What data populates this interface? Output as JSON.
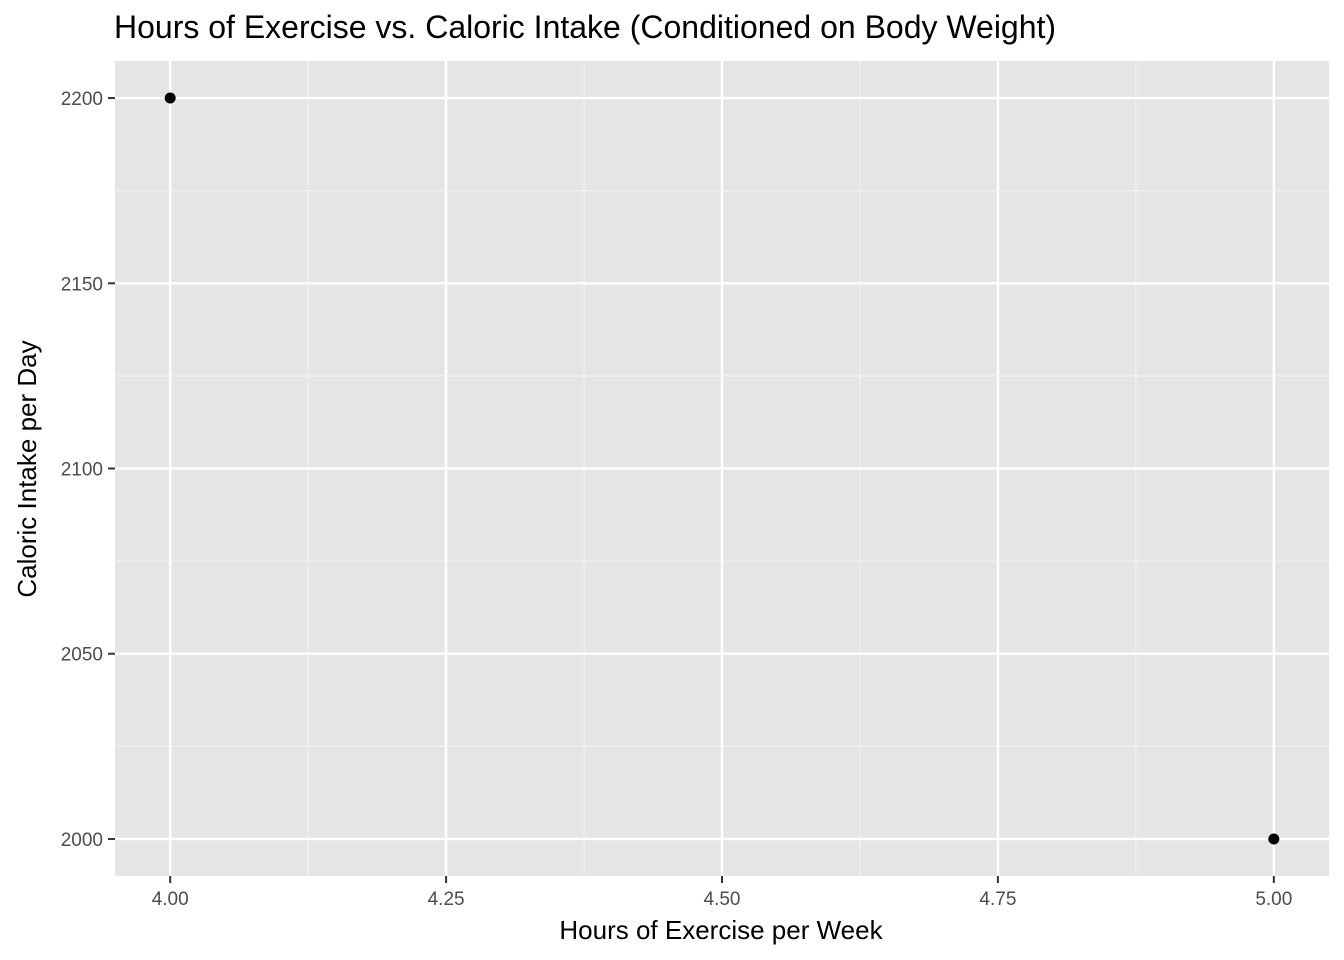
{
  "chart_data": {
    "type": "scatter",
    "title": "Hours of Exercise vs. Caloric Intake (Conditioned on Body Weight)",
    "xlabel": "Hours of Exercise per Week",
    "ylabel": "Caloric Intake per Day",
    "xlim": [
      3.95,
      5.05
    ],
    "ylim": [
      1990,
      2210
    ],
    "x_ticks": [
      4.0,
      4.25,
      4.5,
      4.75,
      5.0
    ],
    "x_tick_labels": [
      "4.00",
      "4.25",
      "4.50",
      "4.75",
      "5.00"
    ],
    "y_ticks": [
      2000,
      2050,
      2100,
      2150,
      2200
    ],
    "y_tick_labels": [
      "2000",
      "2050",
      "2100",
      "2150",
      "2200"
    ],
    "grid": true,
    "legend": "none",
    "series": [
      {
        "points": [
          {
            "x": 4.0,
            "y": 2200
          },
          {
            "x": 5.0,
            "y": 2000
          }
        ]
      }
    ],
    "colors": {
      "panel_background": "#e5e5e5",
      "grid_major": "#ffffff",
      "grid_minor": "#f2f2f2",
      "point": "#000000",
      "tick_text": "#4d4d4d",
      "tick_mark": "#333333"
    }
  }
}
